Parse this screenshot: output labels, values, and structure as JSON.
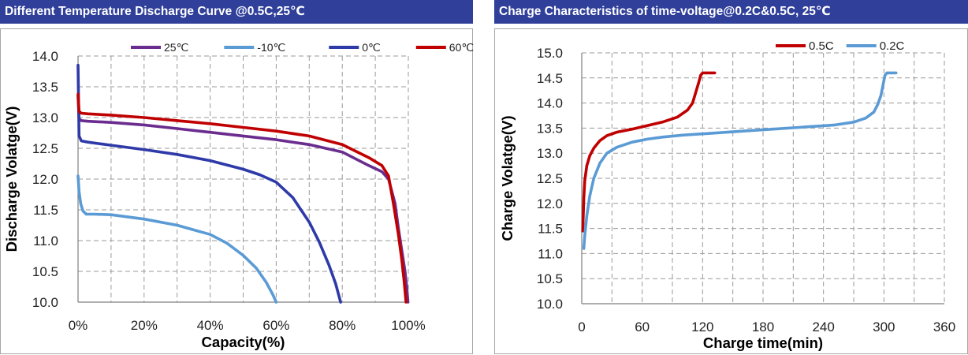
{
  "panels": [
    {
      "title": "Different Temperature Discharge Curve @0.5C,25℃"
    },
    {
      "title": "Charge  Characteristics of time-voltage@0.2C&0.5C, 25℃"
    }
  ],
  "chart_data": [
    {
      "type": "line",
      "title": "Different Temperature Discharge Curve @0.5C,25℃",
      "xlabel": "Capacity(%)",
      "ylabel": "Discharge Volatge(V)",
      "xlim": [
        0,
        100
      ],
      "ylim": [
        10.0,
        14.0
      ],
      "x_ticks": [
        "0%",
        "20%",
        "40%",
        "60%",
        "80%",
        "100%"
      ],
      "y_ticks": [
        "10.0",
        "10.5",
        "11.0",
        "11.5",
        "12.0",
        "12.5",
        "13.0",
        "13.5",
        "14.0"
      ],
      "grid": "dashed",
      "legend_position": "top",
      "series": [
        {
          "name": "25℃",
          "color": "#6a2c8e",
          "x": [
            0,
            0.3,
            1,
            3,
            10,
            20,
            30,
            40,
            50,
            60,
            70,
            80,
            88,
            92,
            94,
            96,
            97,
            98,
            99,
            99.5,
            99.9
          ],
          "y": [
            13.35,
            12.98,
            12.95,
            12.94,
            12.92,
            12.88,
            12.82,
            12.76,
            12.7,
            12.64,
            12.56,
            12.44,
            12.22,
            12.12,
            12.0,
            11.6,
            11.2,
            10.85,
            10.5,
            10.25,
            10.0
          ]
        },
        {
          "name": "-10℃",
          "color": "#5b9bd5",
          "x": [
            0,
            0.3,
            0.8,
            1.5,
            2.5,
            5,
            10,
            20,
            30,
            40,
            45,
            50,
            54,
            57,
            59,
            60
          ],
          "y": [
            12.05,
            11.8,
            11.6,
            11.48,
            11.43,
            11.43,
            11.42,
            11.35,
            11.25,
            11.1,
            10.96,
            10.76,
            10.55,
            10.32,
            10.12,
            10.0
          ]
        },
        {
          "name": "0℃",
          "color": "#2e3aa8",
          "x": [
            0,
            0.3,
            1,
            3,
            10,
            20,
            30,
            40,
            50,
            55,
            60,
            65,
            70,
            73,
            76,
            78,
            79.5
          ],
          "y": [
            13.85,
            12.7,
            12.62,
            12.6,
            12.55,
            12.48,
            12.4,
            12.3,
            12.16,
            12.07,
            11.95,
            11.7,
            11.3,
            10.98,
            10.6,
            10.3,
            10.0
          ]
        },
        {
          "name": "60℃",
          "color": "#c00000",
          "x": [
            0,
            0.3,
            1,
            3,
            10,
            20,
            30,
            40,
            50,
            60,
            70,
            80,
            88,
            92,
            94,
            95.5,
            97,
            98,
            98.7,
            99.3
          ],
          "y": [
            13.38,
            13.1,
            13.07,
            13.06,
            13.04,
            13.0,
            12.95,
            12.9,
            12.84,
            12.78,
            12.7,
            12.56,
            12.35,
            12.22,
            12.05,
            11.6,
            11.1,
            10.7,
            10.35,
            10.0
          ]
        }
      ]
    },
    {
      "type": "line",
      "title": "Charge  Characteristics of time-voltage@0.2C&0.5C, 25℃",
      "xlabel": "Charge time(min)",
      "ylabel": "Charge Volatge(V)",
      "xlim": [
        0,
        360
      ],
      "ylim": [
        10.0,
        15.0
      ],
      "x_ticks": [
        "0",
        "60",
        "120",
        "180",
        "240",
        "300",
        "360"
      ],
      "y_ticks": [
        "10.0",
        "10.5",
        "11.0",
        "11.5",
        "12.0",
        "12.5",
        "13.0",
        "13.5",
        "14.0",
        "14.5",
        "15.0"
      ],
      "grid": "dashed",
      "legend_position": "top-right",
      "series": [
        {
          "name": "0.5C",
          "color": "#c00000",
          "x": [
            1,
            2,
            3,
            5,
            8,
            12,
            18,
            25,
            35,
            50,
            65,
            80,
            95,
            105,
            110,
            113,
            116,
            118,
            120,
            125,
            132
          ],
          "y": [
            11.45,
            12.1,
            12.45,
            12.75,
            12.95,
            13.1,
            13.25,
            13.35,
            13.42,
            13.48,
            13.55,
            13.62,
            13.72,
            13.86,
            14.0,
            14.2,
            14.4,
            14.55,
            14.6,
            14.6,
            14.6
          ]
        },
        {
          "name": "0.2C",
          "color": "#5b9bd5",
          "x": [
            2,
            3,
            5,
            8,
            12,
            18,
            25,
            35,
            50,
            65,
            80,
            100,
            130,
            160,
            190,
            220,
            250,
            270,
            282,
            290,
            294,
            297,
            299,
            301,
            303,
            308,
            312
          ],
          "y": [
            11.1,
            11.35,
            11.75,
            12.15,
            12.5,
            12.8,
            13.0,
            13.12,
            13.22,
            13.28,
            13.32,
            13.36,
            13.4,
            13.44,
            13.48,
            13.52,
            13.56,
            13.62,
            13.7,
            13.82,
            13.98,
            14.15,
            14.35,
            14.55,
            14.6,
            14.6,
            14.6
          ]
        }
      ]
    }
  ]
}
